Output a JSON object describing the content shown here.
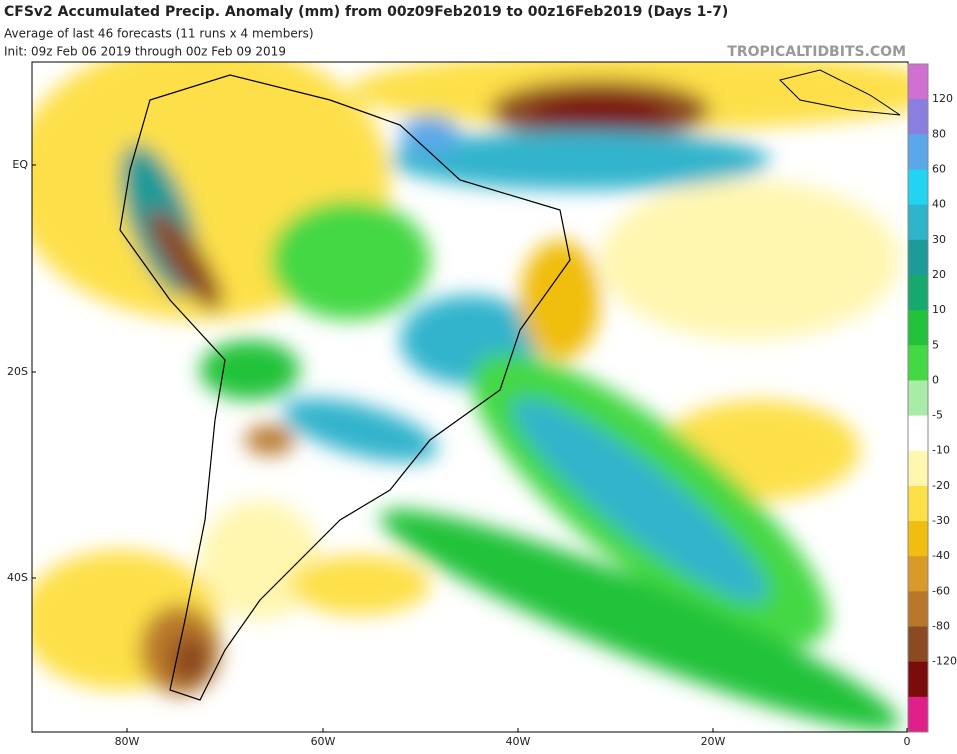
{
  "header": {
    "title": "CFSv2 Accumulated Precip. Anomaly (mm) from 00z09Feb2019 to 00z16Feb2019 (Days 1-7)",
    "subtitle": "Average of last 46 forecasts (11 runs x 4 members)",
    "init": "Init: 09z Feb 06 2019 through 00z Feb 09 2019",
    "watermark": "TROPICALTIDBITS.COM"
  },
  "map": {
    "lat_labels": [
      "EQ",
      "20S",
      "40S"
    ],
    "lon_labels": [
      "80W",
      "60W",
      "40W",
      "20W",
      "0"
    ]
  },
  "colorbar": {
    "labels": [
      "120",
      "80",
      "60",
      "40",
      "30",
      "20",
      "10",
      "5",
      "0",
      "-5",
      "-10",
      "-20",
      "-30",
      "-40",
      "-60",
      "-80",
      "-120"
    ],
    "colors": [
      "#d070d0",
      "#8a7fe0",
      "#5aa8ea",
      "#22d4f2",
      "#30b4cc",
      "#1e9a98",
      "#17a870",
      "#22c23a",
      "#44d844",
      "#a8eca8",
      "#ffffff",
      "#fff6b0",
      "#fde048",
      "#f0be10",
      "#d89a28",
      "#b8782c",
      "#8c4a22",
      "#7a0c0c",
      "#e0208a"
    ]
  }
}
